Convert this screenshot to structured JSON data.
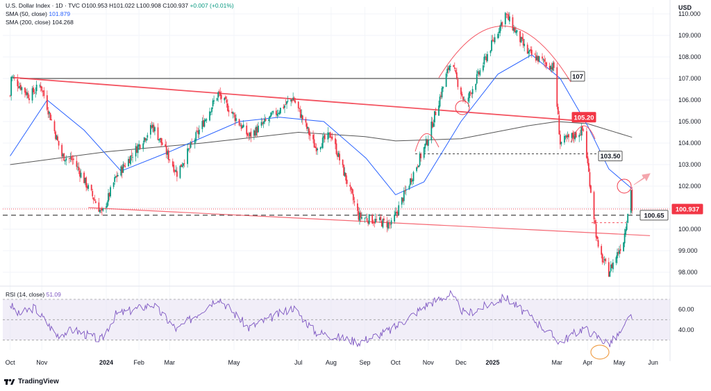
{
  "header": {
    "symbol_line": "U.S. Dollar Index · 1D · TVC",
    "ohlc": "O100.953  H101.022  L100.908  C100.937",
    "change": "+0.007 (+0.01%)",
    "sma50_label": "SMA (50, close)",
    "sma50_value": "101.879",
    "sma200_label": "SMA (200, close)",
    "sma200_value": "104.268"
  },
  "price_axis": {
    "currency": "USD",
    "ticks": [
      "110.000",
      "109.000",
      "108.000",
      "107.000",
      "106.000",
      "105.000",
      "104.000",
      "103.000",
      "102.000",
      "101.000",
      "100.000",
      "99.000",
      "98.000"
    ],
    "last_price_label": "100.937"
  },
  "rsi": {
    "label": "RSI (14, close)",
    "value": "51.09",
    "ticks": [
      "60.00",
      "40.00"
    ]
  },
  "time_axis": {
    "labels": [
      "Oct",
      "Nov",
      "2024",
      "Feb",
      "Mar",
      "May",
      "Jul",
      "Aug",
      "Sep",
      "Oct",
      "Nov",
      "Dec",
      "2025",
      "Mar",
      "Apr",
      "May",
      "Jun"
    ]
  },
  "annotations": {
    "level_107": "107",
    "level_105_20": "105.20",
    "level_103_50": "103.50",
    "level_100_65": "100.65"
  },
  "footer": {
    "brand": "TradingView"
  },
  "colors": {
    "up": "#089981",
    "down": "#f23645",
    "sma50": "#2962ff",
    "sma200": "#555555",
    "trend": "#f23645",
    "rsi_line": "#7e57c2",
    "rsi_band": "#e8e2f4",
    "badge_red": "#f23645"
  },
  "chart_data": {
    "type": "candlestick",
    "x_start": "2023-10",
    "x_end": "2025-06",
    "ylim": [
      98,
      110.5
    ],
    "waypoints": [
      [
        "2023-10-02",
        106.2
      ],
      [
        "2023-10-03",
        107.1
      ],
      [
        "2023-10-20",
        106.2
      ],
      [
        "2023-10-31",
        106.7
      ],
      [
        "2023-11-20",
        103.4
      ],
      [
        "2023-12-01",
        103.2
      ],
      [
        "2023-12-28",
        100.7
      ],
      [
        "2024-01-10",
        102.4
      ],
      [
        "2024-02-14",
        104.8
      ],
      [
        "2024-03-08",
        102.6
      ],
      [
        "2024-04-16",
        106.3
      ],
      [
        "2024-05-15",
        104.3
      ],
      [
        "2024-06-26",
        106.1
      ],
      [
        "2024-07-17",
        103.8
      ],
      [
        "2024-08-01",
        104.4
      ],
      [
        "2024-08-27",
        100.6
      ],
      [
        "2024-09-27",
        100.2
      ],
      [
        "2024-10-31",
        104.1
      ],
      [
        "2024-11-22",
        107.8
      ],
      [
        "2024-12-06",
        105.8
      ],
      [
        "2025-01-13",
        110.0
      ],
      [
        "2025-02-03",
        108.2
      ],
      [
        "2025-02-28",
        107.5
      ],
      [
        "2025-03-06",
        104.0
      ],
      [
        "2025-03-28",
        104.6
      ],
      [
        "2025-04-11",
        99.0
      ],
      [
        "2025-04-21",
        98.0
      ],
      [
        "2025-05-05",
        99.5
      ],
      [
        "2025-05-12",
        101.8
      ],
      [
        "2025-05-13",
        100.937
      ]
    ],
    "sma50_points": [
      [
        "2023-10-02",
        103.4
      ],
      [
        "2023-11-06",
        106.0
      ],
      [
        "2023-12-11",
        104.6
      ],
      [
        "2024-01-15",
        102.7
      ],
      [
        "2024-03-01",
        103.6
      ],
      [
        "2024-05-06",
        105.0
      ],
      [
        "2024-06-13",
        105.2
      ],
      [
        "2024-07-25",
        105.0
      ],
      [
        "2024-09-03",
        103.3
      ],
      [
        "2024-10-01",
        101.6
      ],
      [
        "2024-10-28",
        102.2
      ],
      [
        "2024-12-02",
        105.0
      ],
      [
        "2025-01-06",
        107.2
      ],
      [
        "2025-02-07",
        108.1
      ],
      [
        "2025-03-06",
        107.0
      ],
      [
        "2025-04-01",
        104.8
      ],
      [
        "2025-04-21",
        102.8
      ],
      [
        "2025-05-13",
        101.879
      ]
    ],
    "sma200_points": [
      [
        "2023-10-02",
        103.0
      ],
      [
        "2024-01-02",
        103.6
      ],
      [
        "2024-04-01",
        104.0
      ],
      [
        "2024-07-01",
        104.5
      ],
      [
        "2024-09-02",
        104.3
      ],
      [
        "2024-10-01",
        104.1
      ],
      [
        "2024-12-02",
        104.2
      ],
      [
        "2025-02-03",
        104.8
      ],
      [
        "2025-03-03",
        105.0
      ],
      [
        "2025-04-01",
        104.9
      ],
      [
        "2025-05-13",
        104.268
      ]
    ],
    "levels": {
      "resistance": 107,
      "mid": 105.2,
      "support_dash": 103.5,
      "support": 100.65
    },
    "rsi_points": [
      [
        "2023-10-02",
        65
      ],
      [
        "2023-10-10",
        55
      ],
      [
        "2023-10-25",
        62
      ],
      [
        "2023-11-15",
        35
      ],
      [
        "2023-12-01",
        40
      ],
      [
        "2023-12-27",
        30
      ],
      [
        "2024-01-10",
        55
      ],
      [
        "2024-02-14",
        65
      ],
      [
        "2024-03-08",
        40
      ],
      [
        "2024-04-16",
        72
      ],
      [
        "2024-05-15",
        42
      ],
      [
        "2024-06-26",
        62
      ],
      [
        "2024-07-17",
        38
      ],
      [
        "2024-08-27",
        28
      ],
      [
        "2024-09-27",
        40
      ],
      [
        "2024-10-31",
        65
      ],
      [
        "2024-11-22",
        75
      ],
      [
        "2024-12-06",
        55
      ],
      [
        "2025-01-13",
        72
      ],
      [
        "2025-02-03",
        55
      ],
      [
        "2025-03-06",
        28
      ],
      [
        "2025-03-28",
        42
      ],
      [
        "2025-04-21",
        26
      ],
      [
        "2025-05-05",
        40
      ],
      [
        "2025-05-12",
        58
      ],
      [
        "2025-05-13",
        51.09
      ]
    ],
    "rsi_ylim": [
      20,
      80
    ]
  }
}
